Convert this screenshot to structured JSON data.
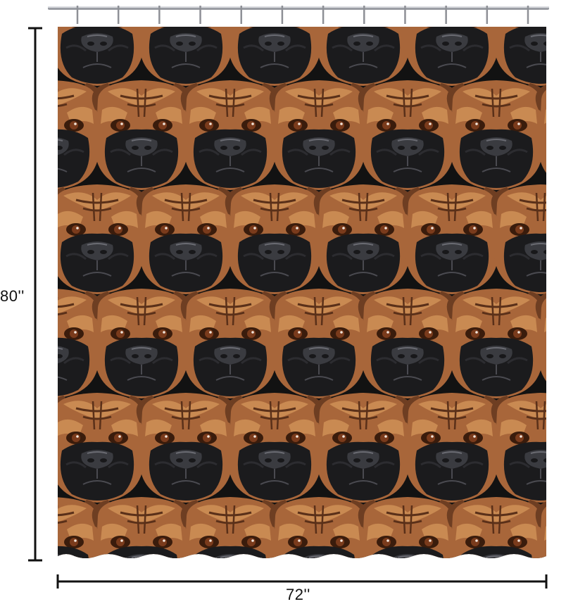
{
  "product": {
    "subject": "boxer-dog-face-pattern-shower-curtain",
    "pattern_colors": {
      "background": "#121212",
      "fur_light": "#c98a52",
      "fur_mid": "#a8663a",
      "fur_dark": "#6e3e22",
      "muzzle": "#1b1b1d",
      "nose": "#3a3b40",
      "eye": "#7a3b1c"
    },
    "pattern": {
      "rows": 5,
      "faces_per_row": 6
    },
    "hooks": 12
  },
  "dimensions": {
    "height_label": "80''",
    "width_label": "72''",
    "line_color": "#111111"
  }
}
